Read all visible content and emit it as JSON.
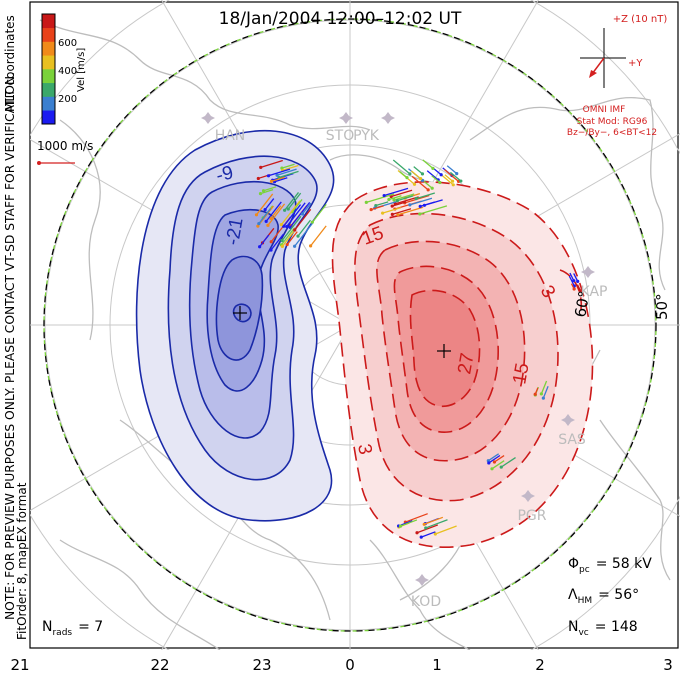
{
  "title": "18/Jan/2004 12:00–12:02 UT",
  "side_text": {
    "coords": "MLT coordinates",
    "note": "NOTE: FOR PREVIEW PURPOSES ONLY. PLEASE CONTACT VT-SD STAFF FOR VERIFICATION.",
    "fit": "FitOrder: 8, mapEX format"
  },
  "colorbar": {
    "ticks": [
      "600",
      "400",
      "200"
    ],
    "label": "Vel [m/s]",
    "colors": [
      "#1b1bf0",
      "#3a7fd0",
      "#3aa86a",
      "#7ad23a",
      "#e8c020",
      "#f08a1a",
      "#e8421a",
      "#c81818"
    ]
  },
  "scale_vector": {
    "label": "1000 m/s",
    "color": "#d42020"
  },
  "imf": {
    "bz_label": "+Z (10 nT)",
    "by_label": "+Y",
    "source": "OMNI IMF",
    "model": "Stat Mod: RG96",
    "bins": "Bz−/By−, 6<BT<12",
    "color": "#d42020"
  },
  "mlt_labels": [
    "21",
    "22",
    "23",
    "0",
    "1",
    "2",
    "3"
  ],
  "latitude_labels": [
    "60°",
    "50°"
  ],
  "stations": [
    "HAN",
    "STO",
    "PYK",
    "KAP",
    "SAS",
    "PGR",
    "KOD"
  ],
  "contours": {
    "negative": [
      "-9",
      "-21"
    ],
    "positive": [
      "15",
      "3",
      "27",
      "15",
      "3"
    ]
  },
  "stats": {
    "phi_sym": "Φ",
    "phi_sub": "pc",
    "phi_val": "= 58 kV",
    "lam_sym": "Λ",
    "lam_sub": "HM",
    "lam_val": "= 56°",
    "nvc_sym": "N",
    "nvc_sub": "vc",
    "nvc_val": "= 148",
    "nrads_sym": "N",
    "nrads_sub": "rads",
    "nrads_val": "= 7"
  },
  "colors": {
    "negative": "#1a2aa8",
    "positive": "#cc1a1a",
    "grid": "#c8c8c8",
    "coast": "#bdbdbd"
  }
}
